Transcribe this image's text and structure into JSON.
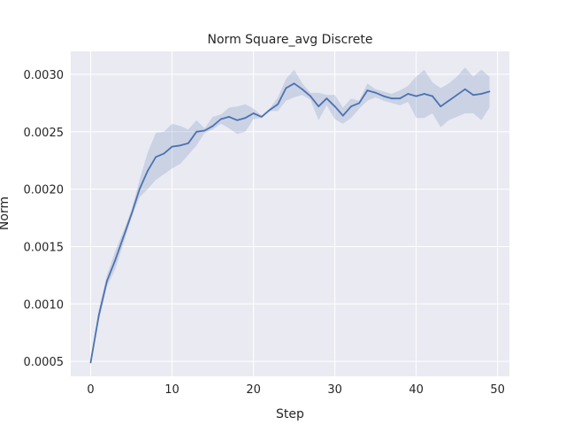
{
  "chart_data": {
    "type": "line",
    "title": "Norm Square_avg Discrete",
    "xlabel": "Step",
    "ylabel": "Norm",
    "xlim": [
      -2.45,
      51.45
    ],
    "ylim": [
      0.00037,
      0.0032
    ],
    "x_ticks": [
      0,
      10,
      20,
      30,
      40,
      50
    ],
    "x_tick_labels": [
      "0",
      "10",
      "20",
      "30",
      "40",
      "50"
    ],
    "y_ticks": [
      0.0005,
      0.001,
      0.0015,
      0.002,
      0.0025,
      0.003
    ],
    "y_tick_labels": [
      "0.0005",
      "0.0010",
      "0.0015",
      "0.0020",
      "0.0025",
      "0.0030"
    ],
    "grid": true,
    "background": "#eaeaf2",
    "line_color": "#4c72b0",
    "band_color": "#4c72b0",
    "series": [
      {
        "x": [
          0,
          1,
          2,
          3,
          4,
          5,
          6,
          7,
          8,
          9,
          10,
          11,
          12,
          13,
          14,
          15,
          16,
          17,
          18,
          19,
          20,
          21,
          22,
          23,
          24,
          25,
          26,
          27,
          28,
          29,
          30,
          31,
          32,
          33,
          34,
          35,
          36,
          37,
          38,
          39,
          40,
          41,
          42,
          43,
          44,
          45,
          46,
          47,
          48,
          49
        ],
        "y": [
          0.00049,
          0.0009,
          0.0012,
          0.00138,
          0.00158,
          0.00178,
          0.002,
          0.00216,
          0.00228,
          0.00231,
          0.00237,
          0.00238,
          0.0024,
          0.0025,
          0.00251,
          0.00255,
          0.00261,
          0.00263,
          0.0026,
          0.00262,
          0.00266,
          0.00263,
          0.00269,
          0.00274,
          0.00288,
          0.00292,
          0.00287,
          0.00281,
          0.00272,
          0.00279,
          0.00272,
          0.00264,
          0.00272,
          0.00275,
          0.00286,
          0.00284,
          0.00281,
          0.00279,
          0.00279,
          0.00283,
          0.00281,
          0.00283,
          0.00281,
          0.00272,
          0.00277,
          0.00282,
          0.00287,
          0.00282,
          0.00283,
          0.00285
        ],
        "lower": [
          0.00049,
          0.00085,
          0.00115,
          0.0013,
          0.00152,
          0.00175,
          0.00193,
          0.002,
          0.00208,
          0.00213,
          0.00218,
          0.00222,
          0.0023,
          0.00238,
          0.00249,
          0.00252,
          0.00257,
          0.00253,
          0.00248,
          0.0025,
          0.00261,
          0.00262,
          0.00268,
          0.00268,
          0.00277,
          0.0028,
          0.00282,
          0.00278,
          0.0026,
          0.00273,
          0.00261,
          0.00257,
          0.00262,
          0.0027,
          0.00277,
          0.0028,
          0.00277,
          0.00275,
          0.00273,
          0.00276,
          0.00262,
          0.00262,
          0.00266,
          0.00254,
          0.0026,
          0.00263,
          0.00266,
          0.00266,
          0.0026,
          0.00271
        ],
        "upper": [
          0.00049,
          0.00095,
          0.00125,
          0.00146,
          0.00163,
          0.00182,
          0.00208,
          0.00232,
          0.00249,
          0.0025,
          0.00257,
          0.00255,
          0.00252,
          0.0026,
          0.00253,
          0.00263,
          0.00265,
          0.00271,
          0.00272,
          0.00274,
          0.0027,
          0.00264,
          0.0027,
          0.0028,
          0.00296,
          0.00304,
          0.00292,
          0.00284,
          0.00284,
          0.00282,
          0.00282,
          0.00271,
          0.00279,
          0.00277,
          0.00292,
          0.00287,
          0.00285,
          0.00283,
          0.00286,
          0.0029,
          0.00298,
          0.00304,
          0.00293,
          0.00288,
          0.00292,
          0.00298,
          0.00306,
          0.00298,
          0.00304,
          0.00298
        ]
      }
    ]
  }
}
